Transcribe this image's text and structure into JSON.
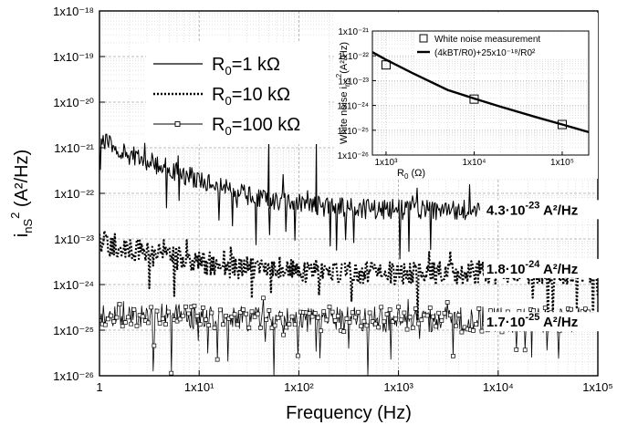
{
  "chart_data": [
    {
      "type": "line",
      "title": "",
      "xlabel": "Frequency (Hz)",
      "ylabel_main": "i",
      "ylabel_sub": "nS",
      "ylabel_sup": "2",
      "ylabel_unit": " (A²/Hz)",
      "x_scale": "log",
      "y_scale": "log",
      "xlim": [
        1,
        100000
      ],
      "ylim": [
        1e-26,
        1e-18
      ],
      "grid": true,
      "legend_position": "top-left",
      "x_ticks": [
        {
          "value": 1,
          "label": "1"
        },
        {
          "value": 10,
          "label": "1x10¹"
        },
        {
          "value": 100,
          "label": "1x10²"
        },
        {
          "value": 1000,
          "label": "1x10³"
        },
        {
          "value": 10000,
          "label": "1x10⁴"
        },
        {
          "value": 100000,
          "label": "1x10⁵"
        }
      ],
      "y_ticks": [
        {
          "value": 1e-18,
          "label": "1x10⁻¹⁸"
        },
        {
          "value": 1e-19,
          "label": "1x10⁻¹⁹"
        },
        {
          "value": 1e-20,
          "label": "1x10⁻²⁰"
        },
        {
          "value": 1e-21,
          "label": "1x10⁻²¹"
        },
        {
          "value": 1e-22,
          "label": "1x10⁻²²"
        },
        {
          "value": 1e-23,
          "label": "1x10⁻²³"
        },
        {
          "value": 1e-24,
          "label": "1x10⁻²⁴"
        },
        {
          "value": 1e-25,
          "label": "1x10⁻²⁵"
        },
        {
          "value": 1e-26,
          "label": "1x10⁻²⁶"
        }
      ],
      "series": [
        {
          "name": "R₀=1 kΩ",
          "style": "solid",
          "x": [
            1,
            1.5,
            2,
            3,
            5,
            7,
            10,
            20,
            30,
            50,
            100,
            200,
            500,
            1000,
            2000,
            5000,
            6500
          ],
          "y": [
            1.5e-21,
            1e-21,
            7e-22,
            5e-22,
            3.5e-22,
            2.5e-22,
            2e-22,
            1.2e-22,
            9e-23,
            7e-23,
            6e-23,
            5e-23,
            4.5e-23,
            4.3e-23,
            4.3e-23,
            4.3e-23,
            4.3e-23
          ],
          "peaks": [
            {
              "x": 50,
              "y": 1.5e-21
            },
            {
              "x": 150,
              "y": 1.5e-21
            }
          ]
        },
        {
          "name": "R₀=10 kΩ",
          "style": "dotted",
          "x": [
            1,
            2,
            5,
            10,
            20,
            50,
            100,
            200,
            500,
            1000,
            2000,
            5000,
            10000,
            20000,
            50000,
            100000
          ],
          "y": [
            9e-24,
            6e-24,
            4e-24,
            3e-24,
            2.5e-24,
            2.2e-24,
            2e-24,
            1.9e-24,
            1.8e-24,
            1.8e-24,
            1.8e-24,
            1.8e-24,
            1.8e-24,
            1.8e-24,
            1.8e-24,
            1.8e-24
          ]
        },
        {
          "name": "R₀=100 kΩ",
          "style": "solid-open-square-markers",
          "x": [
            1,
            2,
            5,
            10,
            20,
            50,
            100,
            200,
            500,
            1000,
            2000,
            5000,
            10000,
            20000,
            50000,
            100000
          ],
          "y": [
            2.5e-25,
            2.2e-25,
            2e-25,
            1.9e-25,
            1.8e-25,
            1.8e-25,
            1.7e-25,
            1.7e-25,
            1.7e-25,
            1.7e-25,
            1.7e-25,
            1.7e-25,
            1.7e-25,
            1.7e-25,
            1.7e-25,
            1.7e-25
          ]
        }
      ],
      "annotations": [
        {
          "mantissa": "4.3·10",
          "exponent": "-23",
          "unit": " A²/Hz",
          "x": 7000,
          "y": 4.3e-23
        },
        {
          "mantissa": "1.8·10",
          "exponent": "-24",
          "unit": " A²/Hz",
          "x": 7000,
          "y": 2.2e-24
        },
        {
          "mantissa": "1.7·10",
          "exponent": "-25",
          "unit": " A²/Hz",
          "x": 7000,
          "y": 1.5e-25
        }
      ],
      "legend": [
        {
          "prefix": "R",
          "sub": "0",
          "rest": "=1 kΩ",
          "style": "solid"
        },
        {
          "prefix": "R",
          "sub": "0",
          "rest": "=10 kΩ",
          "style": "dotted"
        },
        {
          "prefix": "R",
          "sub": "0",
          "rest": "=100 kΩ",
          "style": "marker"
        }
      ]
    },
    {
      "type": "scatter",
      "title": "",
      "xlabel_main": "R",
      "xlabel_sub": "0",
      "xlabel_unit": " (Ω)",
      "ylabel_main": "White noise i",
      "ylabel_sub": "nS",
      "ylabel_sup": "2",
      "ylabel_unit": "(A²/Hz)",
      "x_scale": "log",
      "y_scale": "log",
      "xlim": [
        700,
        200000
      ],
      "ylim": [
        1e-26,
        1e-21
      ],
      "grid": true,
      "legend_position": "top-right",
      "x_ticks": [
        {
          "value": 1000,
          "label": "1x10³"
        },
        {
          "value": 10000,
          "label": "1x10⁴"
        },
        {
          "value": 100000,
          "label": "1x10⁵"
        }
      ],
      "y_ticks": [
        {
          "value": 1e-21,
          "label": "1x10⁻²¹"
        },
        {
          "value": 1e-22,
          "label": "1x10⁻²²"
        },
        {
          "value": 1e-23,
          "label": "1x10⁻²³"
        },
        {
          "value": 1e-24,
          "label": "1x10⁻²⁴"
        },
        {
          "value": 1e-25,
          "label": "1x10⁻²⁵"
        },
        {
          "value": 1e-26,
          "label": "1x10⁻²⁶"
        }
      ],
      "series": [
        {
          "name": "White noise measurement",
          "type": "scatter",
          "marker": "open-square",
          "x": [
            1000,
            10000,
            100000
          ],
          "y": [
            4.3e-23,
            1.8e-24,
            1.7e-25
          ]
        },
        {
          "name": "(4kBT/R0)+25x10⁻¹⁸/R0²",
          "type": "line",
          "x": [
            700,
            1000,
            2000,
            5000,
            10000,
            20000,
            50000,
            100000,
            200000
          ],
          "y": [
            1.4e-22,
            7e-23,
            2e-23,
            4.2e-24,
            1.9e-24,
            8.9e-25,
            3.4e-25,
            1.7e-25,
            8.4e-26
          ]
        }
      ],
      "legend_text": {
        "measurement": "White noise measurement",
        "fit": "(4kBT/R0)+25x10⁻¹⁸/R0²"
      }
    }
  ]
}
